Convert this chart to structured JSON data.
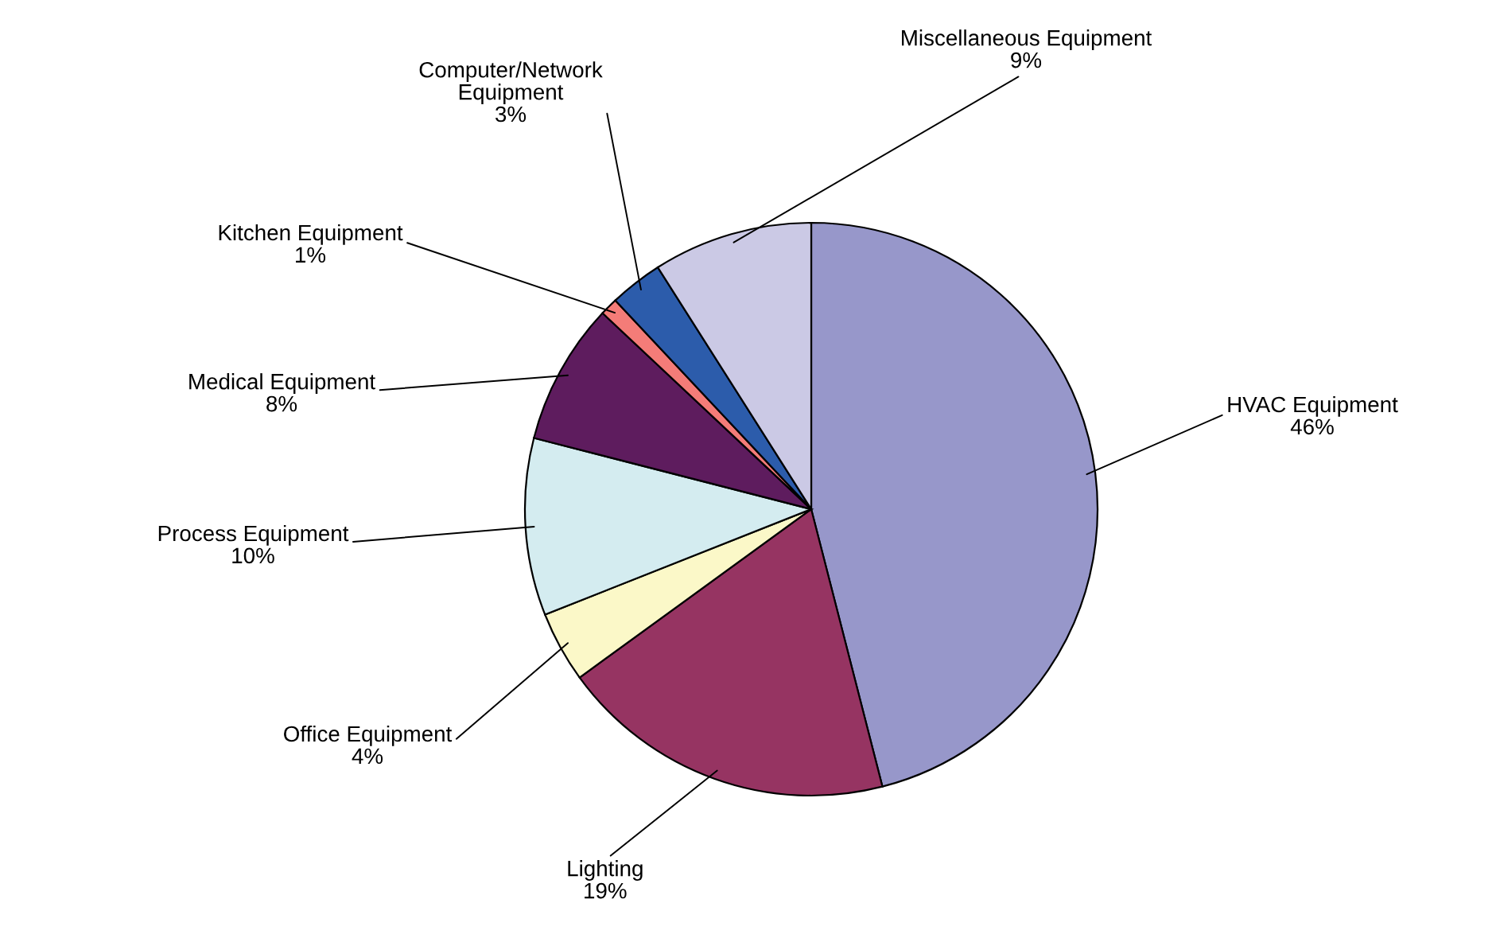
{
  "chart_data": {
    "type": "pie",
    "categories": [
      "HVAC Equipment",
      "Lighting",
      "Office Equipment",
      "Process Equipment",
      "Medical Equipment",
      "Kitchen Equipment",
      "Computer/Network\nEquipment",
      "Miscellaneous Equipment"
    ],
    "values": [
      46,
      19,
      4,
      10,
      8,
      1,
      3,
      9
    ],
    "value_labels": [
      "46%",
      "19%",
      "4%",
      "10%",
      "8%",
      "1%",
      "3%",
      "9%"
    ],
    "colors": [
      "#9797ca",
      "#963462",
      "#fbf8c8",
      "#d4ecf0",
      "#5e1c5e",
      "#f47c78",
      "#2c5cab",
      "#cbc9e5"
    ],
    "legend": false
  }
}
